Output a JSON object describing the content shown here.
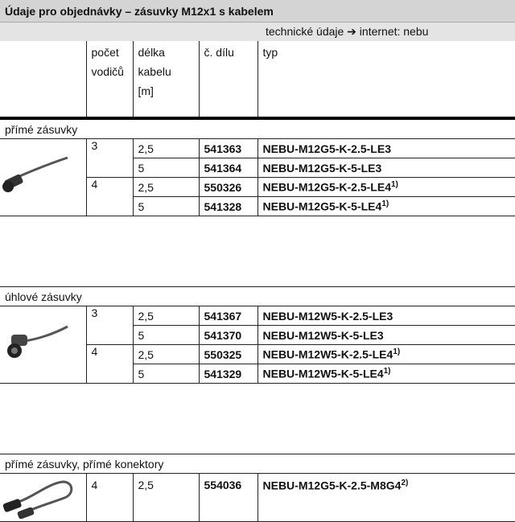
{
  "header": {
    "title": "Údaje pro objednávky – zásuvky M12x1 s kabelem",
    "link": "technické údaje ➔ internet: nebu"
  },
  "columns": {
    "wires": [
      "počet",
      "vodičů"
    ],
    "length": [
      "délka",
      "kabelu",
      "[m]"
    ],
    "part": "č. dílu",
    "type": "typ"
  },
  "groups": [
    {
      "title": "přímé zásuvky",
      "items": [
        {
          "wires": "3",
          "variants": [
            {
              "length": "2,5",
              "part": "541363",
              "type": "NEBU-M12G5-K-2.5-LE3"
            },
            {
              "length": "5",
              "part": "541364",
              "type": "NEBU-M12G5-K-5-LE3"
            }
          ]
        },
        {
          "wires": "4",
          "variants": [
            {
              "length": "2,5",
              "part": "550326",
              "type": "NEBU-M12G5-K-2.5-LE4",
              "note": "1)"
            },
            {
              "length": "5",
              "part": "541328",
              "type": "NEBU-M12G5-K-5-LE4",
              "note": "1)"
            }
          ]
        }
      ]
    },
    {
      "title": "úhlové zásuvky",
      "items": [
        {
          "wires": "3",
          "variants": [
            {
              "length": "2,5",
              "part": "541367",
              "type": "NEBU-M12W5-K-2.5-LE3"
            },
            {
              "length": "5",
              "part": "541370",
              "type": "NEBU-M12W5-K-5-LE3"
            }
          ]
        },
        {
          "wires": "4",
          "variants": [
            {
              "length": "2,5",
              "part": "550325",
              "type": "NEBU-M12W5-K-2.5-LE4",
              "note": "1)"
            },
            {
              "length": "5",
              "part": "541329",
              "type": "NEBU-M12W5-K-5-LE4",
              "note": "1)"
            }
          ]
        }
      ]
    },
    {
      "title": "přímé zásuvky, přímé konektory",
      "items": [
        {
          "wires": "4",
          "variants": [
            {
              "length": "2,5",
              "part": "554036",
              "type": "NEBU-M12G5-K-2.5-M8G4",
              "note": "2)"
            }
          ]
        }
      ]
    }
  ]
}
